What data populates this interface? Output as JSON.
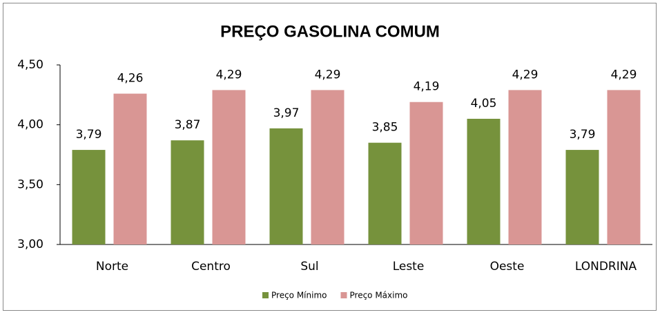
{
  "chart_data": {
    "type": "bar",
    "title": "PREÇO GASOLINA COMUM",
    "categories": [
      "Norte",
      "Centro",
      "Sul",
      "Leste",
      "Oeste",
      "LONDRINA"
    ],
    "series": [
      {
        "name": "Preço Mínimo",
        "color": "#76923c",
        "values": [
          3.79,
          3.87,
          3.97,
          3.85,
          4.05,
          3.79
        ],
        "value_labels": [
          "3,79",
          "3,87",
          "3,97",
          "3,85",
          "4,05",
          "3,79"
        ]
      },
      {
        "name": "Preço Máximo",
        "color": "#d99694",
        "values": [
          4.26,
          4.29,
          4.29,
          4.19,
          4.29,
          4.29
        ],
        "value_labels": [
          "4,26",
          "4,29",
          "4,29",
          "4,19",
          "4,29",
          "4,29"
        ]
      }
    ],
    "ylim": [
      3,
      4.5
    ],
    "yticks": [
      {
        "value": 3,
        "label": "3,00"
      },
      {
        "value": 3.5,
        "label": "3,50"
      },
      {
        "value": 4,
        "label": "4,00"
      },
      {
        "value": 4.5,
        "label": "4,50"
      }
    ],
    "legend": "bottom"
  }
}
